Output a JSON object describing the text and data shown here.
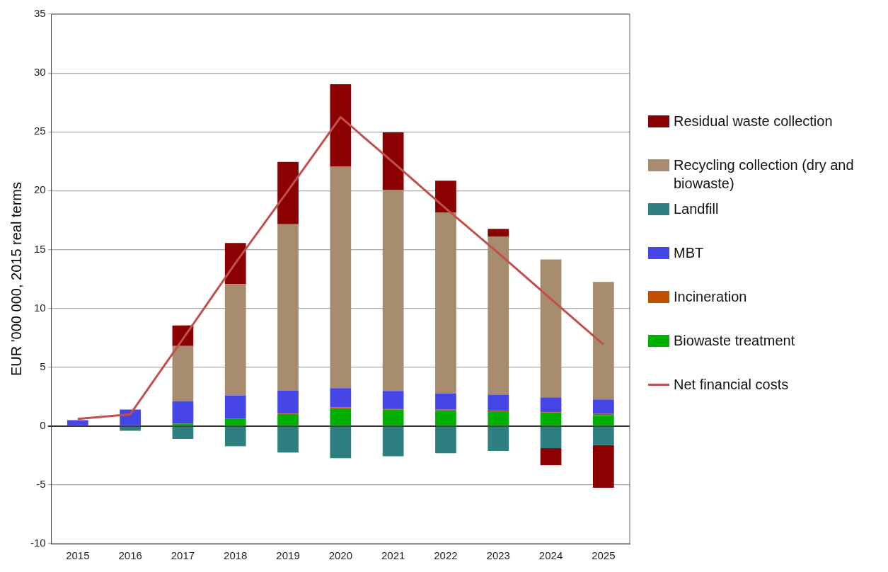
{
  "chart_data": {
    "type": "bar",
    "stacked": true,
    "ylabel": "EUR '000 000, 2015 real terms",
    "categories": [
      "2015",
      "2016",
      "2017",
      "2018",
      "2019",
      "2020",
      "2021",
      "2022",
      "2023",
      "2024",
      "2025"
    ],
    "ylim": [
      -10,
      35
    ],
    "yticks": [
      -10,
      -5,
      0,
      5,
      10,
      15,
      20,
      25,
      30,
      35
    ],
    "grid": "y",
    "legend": "right",
    "series": [
      {
        "name": "Biowaste treatment",
        "color": "#00b000",
        "values": [
          0,
          0,
          0.2,
          0.6,
          0.95,
          1.48,
          1.39,
          1.29,
          1.19,
          1.07,
          0.93
        ]
      },
      {
        "name": "Incineration",
        "color": "#c05000",
        "values": [
          0,
          0,
          0,
          0,
          0.1,
          0.1,
          0.1,
          0.1,
          0.1,
          0.1,
          0.1
        ]
      },
      {
        "name": "MBT",
        "color": "#4646e6",
        "values": [
          0.5,
          1.4,
          1.9,
          2.0,
          1.97,
          1.64,
          1.49,
          1.39,
          1.35,
          1.26,
          1.22
        ]
      },
      {
        "name": "Landfill",
        "color": "#2e7f7f",
        "values": [
          0,
          -0.4,
          -1.1,
          -1.72,
          -2.26,
          -2.73,
          -2.57,
          -2.32,
          -2.12,
          -1.88,
          -1.62
        ]
      },
      {
        "name": "Recycling collection (dry and biowaste)",
        "color": "#a68b6f",
        "values": [
          0,
          0,
          4.7,
          9.47,
          14.12,
          18.82,
          17.07,
          15.37,
          13.47,
          11.72,
          10.0
        ]
      },
      {
        "name": "Residual waste collection",
        "color": "#8b0000",
        "values": [
          0,
          0,
          1.75,
          3.49,
          5.3,
          7.01,
          4.9,
          2.7,
          0.64,
          -1.45,
          -3.62
        ]
      },
      {
        "name": "Net financial costs",
        "type": "line",
        "color": "#c0504d",
        "marker": "none",
        "values": [
          0.6,
          1.0,
          7.4,
          13.85,
          20.0,
          26.25,
          22.4,
          18.5,
          14.7,
          10.8,
          6.93
        ]
      }
    ]
  }
}
